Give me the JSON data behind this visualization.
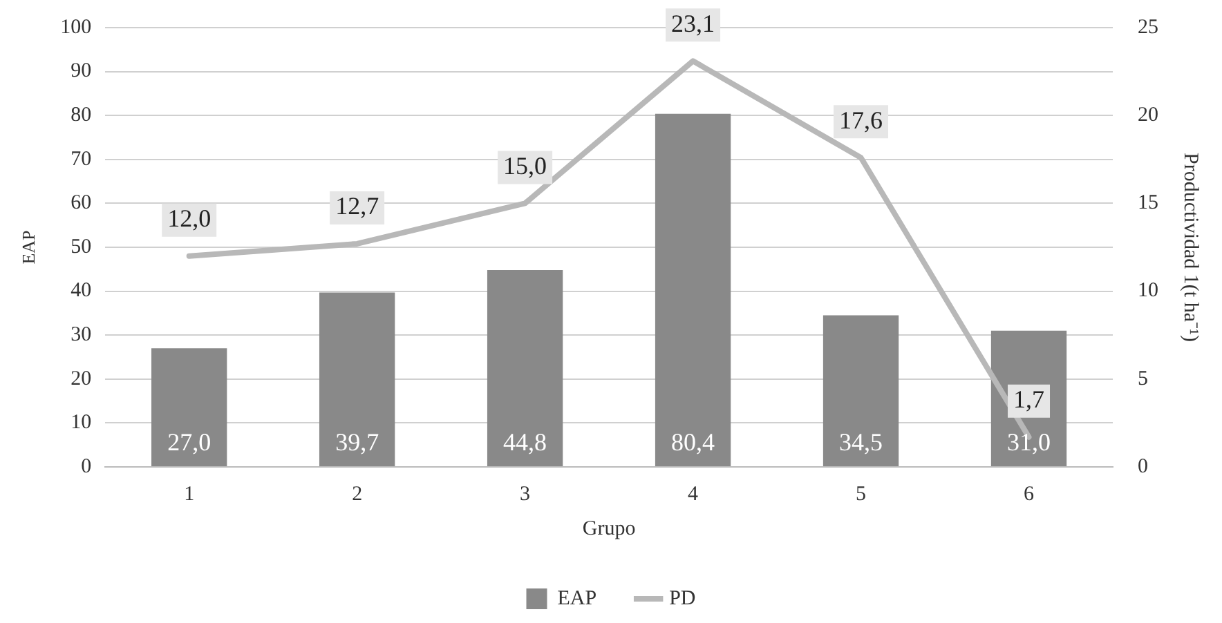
{
  "chart_data": {
    "type": "bar",
    "xlabel": "Grupo",
    "ylabel": "EAP",
    "y2label": "Productividad 1(t ha⁻¹)",
    "categories": [
      "1",
      "2",
      "3",
      "4",
      "5",
      "6"
    ],
    "series": [
      {
        "name": "EAP",
        "color": "#898989",
        "values": [
          27.0,
          39.7,
          44.8,
          80.4,
          34.5,
          31.0
        ],
        "value_labels": [
          "27,0",
          "39,7",
          "44,8",
          "80,4",
          "34,5",
          "31,0"
        ]
      },
      {
        "name": "PD",
        "type": "line",
        "axis": "y2",
        "color": "#b8b8b8",
        "values": [
          12.0,
          12.7,
          15.0,
          23.1,
          17.6,
          1.7
        ],
        "value_labels": [
          "12,0",
          "12,7",
          "15,0",
          "23,1",
          "17,6",
          "1,7"
        ]
      }
    ],
    "ylim": [
      0,
      100
    ],
    "yticks": [
      0,
      10,
      20,
      30,
      40,
      50,
      60,
      70,
      80,
      90,
      100
    ],
    "y2lim": [
      0,
      25
    ],
    "y2ticks": [
      0,
      5,
      10,
      15,
      20,
      25
    ],
    "grid": "y",
    "legend": "bottom",
    "marker": "none",
    "line_style": "solid"
  }
}
